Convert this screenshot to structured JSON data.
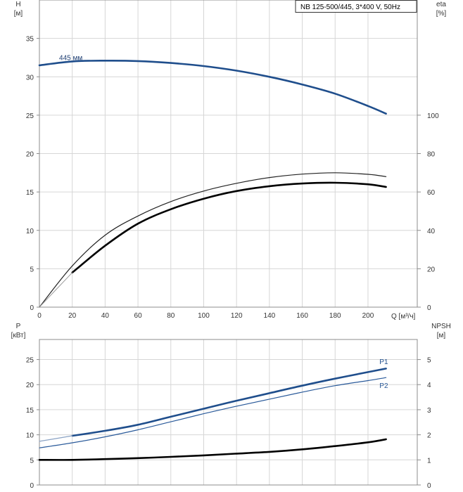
{
  "chart_data": [
    {
      "type": "line",
      "panel": "head-efficiency",
      "title_box": "NB 125-500/445, 3*400 V, 50Hz",
      "left_axis": {
        "label": "H",
        "unit": "[м]",
        "ylim": [
          0,
          40
        ],
        "ticks": [
          0,
          5,
          10,
          15,
          20,
          25,
          30,
          35
        ]
      },
      "right_axis": {
        "label": "eta",
        "unit": "[%]",
        "ylim": [
          0,
          160
        ],
        "ticks": [
          0,
          20,
          40,
          60,
          80,
          100
        ]
      },
      "x_axis": {
        "label": "Q [м³/ч]",
        "xlim": [
          0,
          230
        ],
        "ticks": [
          0,
          20,
          40,
          60,
          80,
          100,
          120,
          140,
          160,
          180,
          200
        ]
      },
      "grid": true,
      "series": [
        {
          "name": "445 мм",
          "axis": "left",
          "color": "#1f4e8c",
          "style": "thick",
          "x": [
            0,
            20,
            40,
            60,
            80,
            100,
            120,
            140,
            160,
            180,
            200,
            211
          ],
          "y": [
            31.5,
            32.0,
            32.1,
            32.05,
            31.8,
            31.4,
            30.8,
            30.0,
            29.0,
            27.8,
            26.2,
            25.2
          ]
        },
        {
          "name": "",
          "axis": "right",
          "color": "#222222",
          "style": "thin",
          "x": [
            0,
            20,
            40,
            60,
            80,
            100,
            120,
            140,
            160,
            180,
            200,
            211
          ],
          "y": [
            0,
            21.5,
            37.5,
            47.5,
            55,
            60.5,
            64.5,
            67.5,
            69.3,
            70,
            69.2,
            68
          ]
        },
        {
          "name": "",
          "axis": "right",
          "color": "#000000",
          "style": "thick",
          "x": [
            20,
            40,
            60,
            80,
            100,
            120,
            140,
            160,
            180,
            200,
            211
          ],
          "y": [
            18,
            32,
            43.5,
            51,
            56.5,
            60.5,
            63,
            64.4,
            64.8,
            64,
            62.6
          ]
        },
        {
          "name": "",
          "axis": "right",
          "color": "#999999",
          "style": "faint",
          "x": [
            0,
            10,
            20
          ],
          "y": [
            0,
            9,
            18
          ]
        }
      ],
      "annotations": [
        {
          "text": "445 мм",
          "x": 12,
          "y": 32.0
        }
      ]
    },
    {
      "type": "line",
      "panel": "power-npsh",
      "left_axis": {
        "label": "P",
        "unit": "[кВт]",
        "ylim": [
          0,
          29
        ],
        "ticks": [
          0,
          5,
          10,
          15,
          20,
          25
        ]
      },
      "right_axis": {
        "label": "NPSH",
        "unit": "[м]",
        "ylim": [
          0,
          5.8
        ],
        "ticks": [
          0,
          1,
          2,
          3,
          4,
          5
        ]
      },
      "x_axis": {
        "label": "Q [м³/ч]",
        "xlim": [
          0,
          230
        ],
        "ticks": [
          0,
          20,
          40,
          60,
          80,
          100,
          120,
          140,
          160,
          180,
          200
        ]
      },
      "grid": true,
      "series": [
        {
          "name": "P1",
          "axis": "left",
          "color": "#1f4e8c",
          "style": "thick",
          "x": [
            20,
            40,
            60,
            80,
            100,
            120,
            140,
            160,
            180,
            200,
            211
          ],
          "y": [
            9.8,
            10.8,
            12.0,
            13.6,
            15.2,
            16.8,
            18.3,
            19.8,
            21.2,
            22.5,
            23.2
          ]
        },
        {
          "name": "",
          "axis": "left",
          "color": "#8aa2c4",
          "style": "thin",
          "x": [
            0,
            20
          ],
          "y": [
            8.7,
            9.8
          ]
        },
        {
          "name": "P2",
          "axis": "left",
          "color": "#2a5a9a",
          "style": "thin",
          "x": [
            0,
            20,
            40,
            60,
            80,
            100,
            120,
            140,
            160,
            180,
            200,
            211
          ],
          "y": [
            7.4,
            8.4,
            9.6,
            11.0,
            12.6,
            14.2,
            15.7,
            17.1,
            18.5,
            19.8,
            20.8,
            21.4
          ]
        },
        {
          "name": "",
          "axis": "right",
          "color": "#000000",
          "style": "thick",
          "x": [
            0,
            20,
            40,
            60,
            80,
            100,
            120,
            140,
            160,
            180,
            200,
            211
          ],
          "y": [
            1.0,
            1.0,
            1.03,
            1.07,
            1.12,
            1.18,
            1.25,
            1.32,
            1.42,
            1.55,
            1.7,
            1.82
          ]
        }
      ],
      "annotations": [
        {
          "text": "P1",
          "x": 207,
          "y": 24.1
        },
        {
          "text": "P2",
          "x": 207,
          "y": 20.3
        }
      ]
    }
  ]
}
